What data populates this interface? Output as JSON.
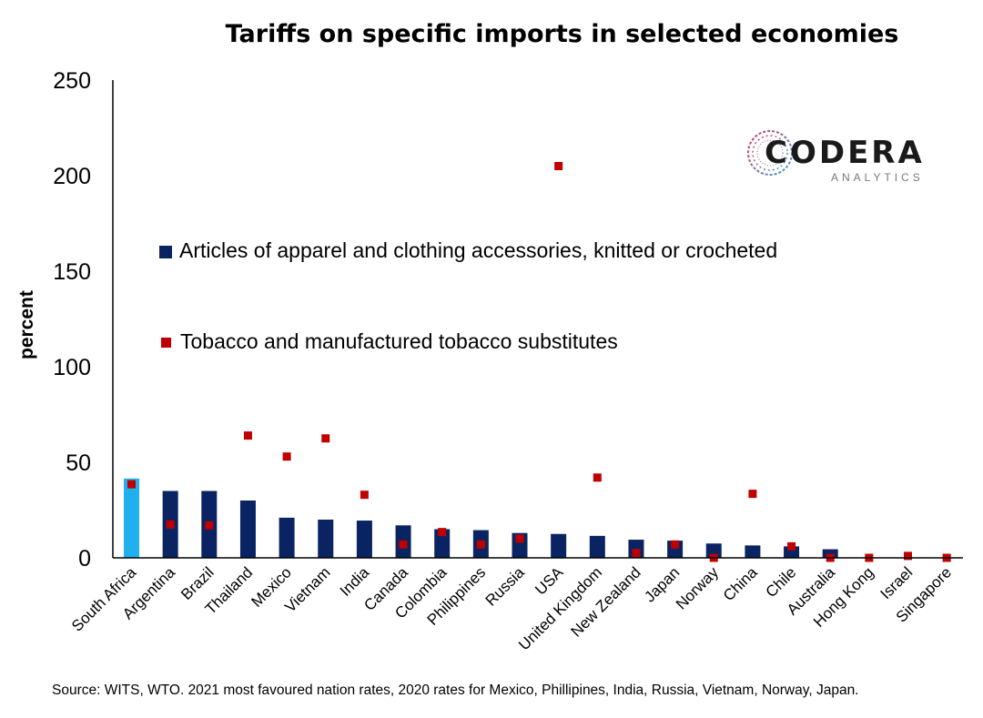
{
  "chart_data": {
    "type": "bar",
    "title": "Tariffs on specific imports in selected economies",
    "ylabel": "percent",
    "xlabel": "",
    "ylim": [
      0,
      250
    ],
    "yticks": [
      0,
      50,
      100,
      150,
      200,
      250
    ],
    "grid": false,
    "legend_position": "inside-left",
    "categories": [
      "South Africa",
      "Argentina",
      "Brazil",
      "Thailand",
      "Mexico",
      "Vietnam",
      "India",
      "Canada",
      "Colombia",
      "Philippines",
      "Russia",
      "USA",
      "United Kingdom",
      "New Zealand",
      "Japan",
      "Norway",
      "China",
      "Chile",
      "Australia",
      "Hong Kong",
      "Israel",
      "Singapore"
    ],
    "series": [
      {
        "name": "Articles of apparel and clothing accessories, knitted or crocheted",
        "type": "bar",
        "color": "#0a2463",
        "highlight_color": "#20b0f0",
        "highlight_index": 0,
        "values": [
          41.5,
          35,
          35,
          30,
          21,
          20,
          19.5,
          17,
          15,
          14.5,
          13,
          12.5,
          11.5,
          9.5,
          9,
          7.5,
          6.5,
          6,
          4.5,
          0,
          0,
          0
        ]
      },
      {
        "name": "Tobacco and manufactured tobacco substitutes",
        "type": "scatter",
        "color": "#c00000",
        "values": [
          38.5,
          17.5,
          17,
          64,
          53,
          62.5,
          33,
          7,
          13.5,
          7,
          10,
          205,
          42,
          2.5,
          7,
          0,
          33.5,
          6,
          0,
          0,
          1,
          0
        ]
      }
    ]
  },
  "logo": {
    "word": "CODERA",
    "sub": "ANALYTICS"
  },
  "source": "Source: WITS, WTO. 2021 most favoured nation rates, 2020 rates for Mexico, Phillipines, India, Russia, Vietnam, Norway, Japan."
}
